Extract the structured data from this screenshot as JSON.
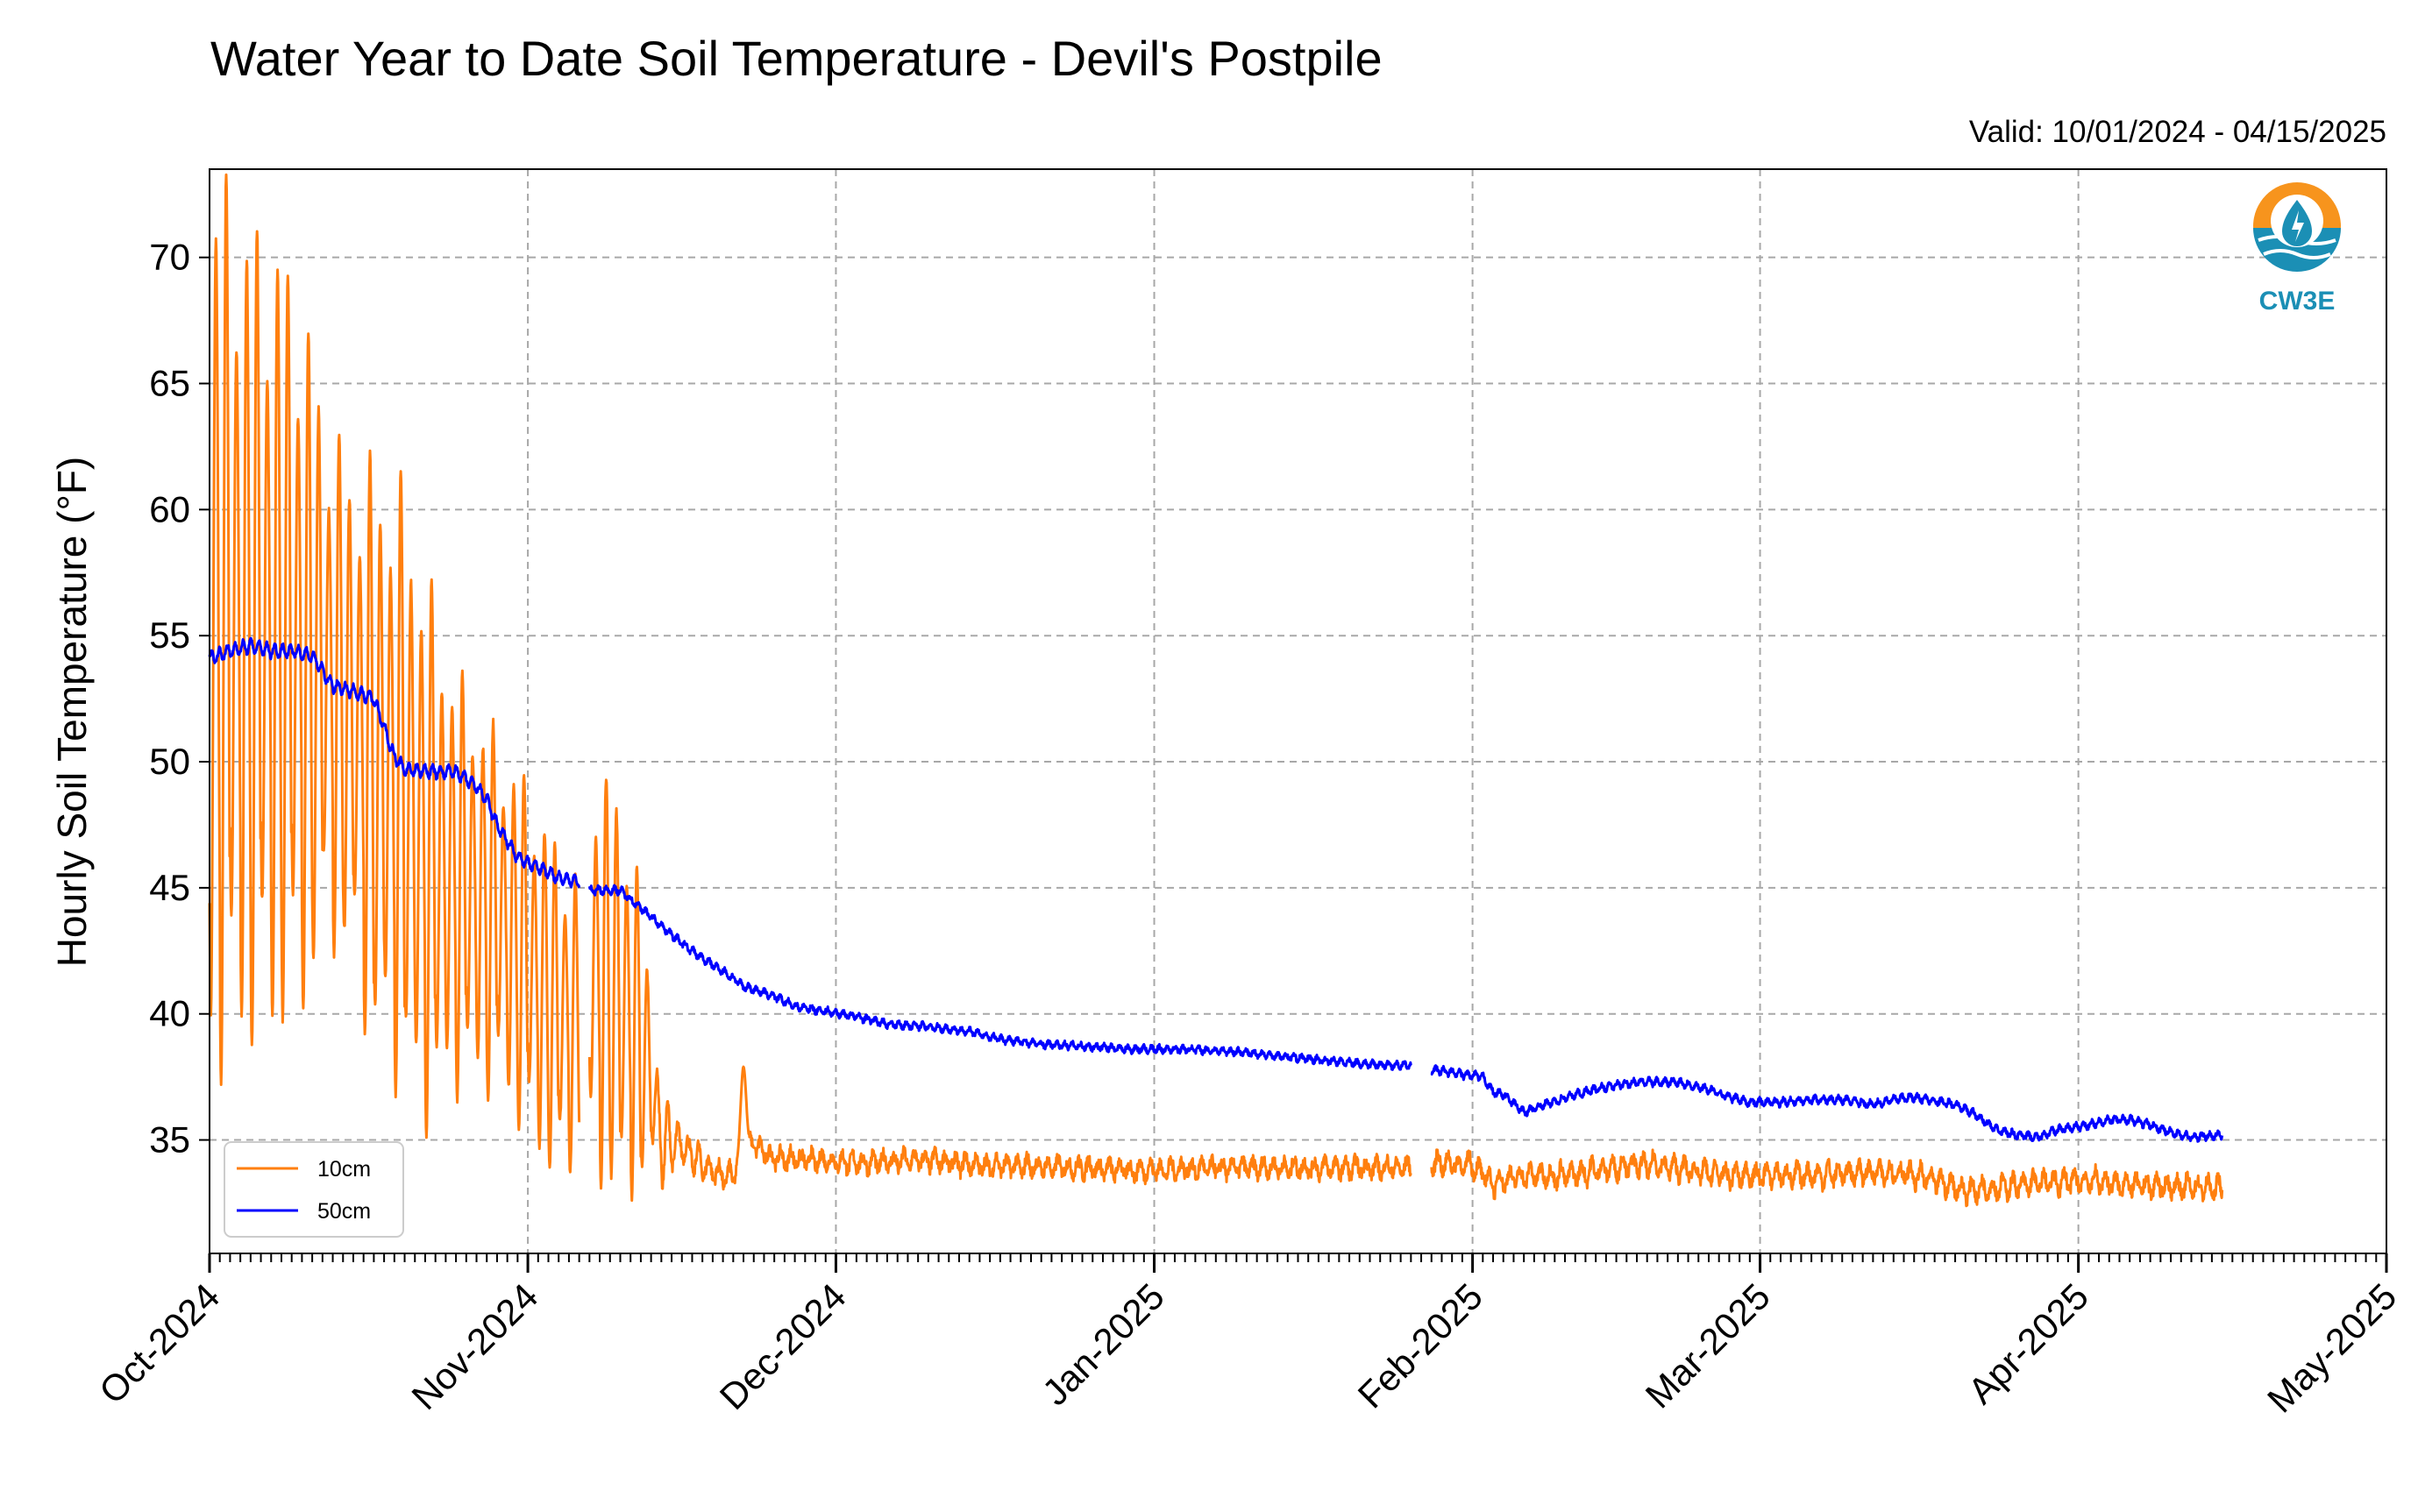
{
  "chart_data": {
    "type": "line",
    "title": "Water Year to Date Soil Temperature - Devil's Postpile",
    "subtitle": "Valid: 10/01/2024 - 04/15/2025",
    "ylabel": "Hourly Soil Temperature (°F)",
    "xlabel": "",
    "xlim": [
      "2024-10-01",
      "2025-05-01"
    ],
    "ylim": [
      30.5,
      73.5
    ],
    "yticks": [
      35,
      40,
      45,
      50,
      55,
      60,
      65,
      70
    ],
    "xticks": [
      {
        "date": "2024-10-01",
        "label": "Oct-2024"
      },
      {
        "date": "2024-11-01",
        "label": "Nov-2024"
      },
      {
        "date": "2024-12-01",
        "label": "Dec-2024"
      },
      {
        "date": "2025-01-01",
        "label": "Jan-2025"
      },
      {
        "date": "2025-02-01",
        "label": "Feb-2025"
      },
      {
        "date": "2025-03-01",
        "label": "Mar-2025"
      },
      {
        "date": "2025-04-01",
        "label": "Apr-2025"
      },
      {
        "date": "2025-05-01",
        "label": "May-2025"
      }
    ],
    "grid": true,
    "legend_position": "lower-left",
    "logo_text": "CW3E",
    "series": [
      {
        "name": "10cm",
        "color": "#ff7f0e",
        "segments": [
          {
            "start": "2024-10-01",
            "end": "2024-11-06",
            "base": [
              [
                0,
                55.5
              ],
              [
                4,
                55
              ],
              [
                8,
                54.5
              ],
              [
                12,
                53
              ],
              [
                16,
                50
              ],
              [
                19,
                49
              ],
              [
                20,
                47.5
              ],
              [
                22,
                46
              ],
              [
                25,
                45
              ],
              [
                28,
                44
              ],
              [
                31,
                42
              ],
              [
                34,
                40
              ],
              [
                36.5,
                39.5
              ]
            ],
            "amp": [
              [
                0,
                15.5
              ],
              [
                4,
                14
              ],
              [
                8,
                13
              ],
              [
                10,
                11
              ],
              [
                11,
                9
              ],
              [
                14,
                8.5
              ],
              [
                16,
                10
              ],
              [
                20,
                10
              ],
              [
                24,
                7
              ],
              [
                28,
                6
              ],
              [
                32,
                6
              ],
              [
                36.5,
                5
              ]
            ]
          },
          {
            "start": "2024-11-07",
            "end": "2025-01-26",
            "base": [
              [
                37,
                42
              ],
              [
                41,
                40
              ],
              [
                43,
                37.5
              ],
              [
                44,
                35
              ],
              [
                46,
                34.8
              ],
              [
                48,
                34
              ],
              [
                50,
                33.6
              ],
              [
                51,
                33.5
              ],
              [
                52,
                35
              ],
              [
                53,
                34.7
              ],
              [
                55,
                34.3
              ],
              [
                63,
                34.1
              ],
              [
                70,
                34.2
              ],
              [
                75,
                34
              ],
              [
                85,
                33.9
              ],
              [
                90,
                33.8
              ],
              [
                100,
                33.9
              ],
              [
                110,
                33.9
              ],
              [
                117,
                33.9
              ]
            ],
            "amp": [
              [
                37,
                7
              ],
              [
                40,
                7
              ],
              [
                42,
                5
              ],
              [
                43,
                3
              ],
              [
                44,
                1.5
              ],
              [
                46,
                0.6
              ],
              [
                50,
                0.4
              ],
              [
                55,
                0.3
              ],
              [
                117,
                0.3
              ]
            ],
            "spikes": [
              [
                52,
                37.9
              ]
            ]
          },
          {
            "start": "2025-01-28",
            "end": "2025-04-15",
            "base": [
              [
                119,
                34.1
              ],
              [
                123,
                34
              ],
              [
                125,
                33.3
              ],
              [
                128,
                33.6
              ],
              [
                132,
                33.6
              ],
              [
                135,
                33.8
              ],
              [
                138,
                34
              ],
              [
                141,
                34
              ],
              [
                144,
                33.8
              ],
              [
                148,
                33.6
              ],
              [
                152,
                33.6
              ],
              [
                156,
                33.6
              ],
              [
                160,
                33.7
              ],
              [
                165,
                33.7
              ],
              [
                168,
                33.4
              ],
              [
                171,
                33
              ],
              [
                174,
                33.1
              ],
              [
                178,
                33.3
              ],
              [
                183,
                33.4
              ],
              [
                187,
                33.2
              ],
              [
                196,
                33.1
              ]
            ],
            "amp": [
              [
                119,
                0.35
              ],
              [
                196,
                0.35
              ]
            ]
          }
        ]
      },
      {
        "name": "50cm",
        "color": "#0000ff",
        "segments": [
          {
            "start": "2024-10-01",
            "end": "2024-11-06",
            "base": [
              [
                0,
                54.1
              ],
              [
                2,
                54.4
              ],
              [
                4,
                54.6
              ],
              [
                6,
                54.4
              ],
              [
                8,
                54.4
              ],
              [
                10,
                54.2
              ],
              [
                11,
                53.6
              ],
              [
                12,
                53
              ],
              [
                14,
                52.8
              ],
              [
                16,
                52.5
              ],
              [
                18,
                50.2
              ],
              [
                19,
                49.7
              ],
              [
                22,
                49.6
              ],
              [
                24,
                49.6
              ],
              [
                26,
                49
              ],
              [
                27,
                48.5
              ],
              [
                28,
                47.5
              ],
              [
                30,
                46.2
              ],
              [
                32,
                45.8
              ],
              [
                34,
                45.4
              ],
              [
                36.5,
                45.2
              ]
            ],
            "amp": [
              [
                0,
                0.25
              ],
              [
                36.5,
                0.2
              ]
            ]
          },
          {
            "start": "2024-11-07",
            "end": "2025-01-26",
            "base": [
              [
                38,
                44.9
              ],
              [
                40,
                44.9
              ],
              [
                42,
                44.2
              ],
              [
                44,
                43.5
              ],
              [
                46,
                42.8
              ],
              [
                48,
                42.2
              ],
              [
                50,
                41.7
              ],
              [
                52,
                41.1
              ],
              [
                55,
                40.7
              ],
              [
                57,
                40.3
              ],
              [
                60,
                40.1
              ],
              [
                63,
                39.9
              ],
              [
                66,
                39.6
              ],
              [
                70,
                39.5
              ],
              [
                74,
                39.3
              ],
              [
                77,
                39
              ],
              [
                81,
                38.8
              ],
              [
                86,
                38.7
              ],
              [
                90,
                38.6
              ],
              [
                95,
                38.6
              ],
              [
                100,
                38.5
              ],
              [
                105,
                38.3
              ],
              [
                110,
                38.1
              ],
              [
                113,
                38
              ],
              [
                117,
                37.95
              ]
            ],
            "amp": [
              [
                38,
                0.12
              ],
              [
                117,
                0.1
              ]
            ]
          },
          {
            "start": "2025-01-28",
            "end": "2025-04-15",
            "base": [
              [
                119,
                37.8
              ],
              [
                122,
                37.6
              ],
              [
                124,
                37.5
              ],
              [
                125,
                36.9
              ],
              [
                126,
                36.8
              ],
              [
                128,
                36.1
              ],
              [
                130,
                36.4
              ],
              [
                133,
                36.8
              ],
              [
                136,
                37.1
              ],
              [
                139,
                37.3
              ],
              [
                143,
                37.3
              ],
              [
                146,
                37
              ],
              [
                148,
                36.7
              ],
              [
                150,
                36.5
              ],
              [
                153,
                36.5
              ],
              [
                156,
                36.6
              ],
              [
                159,
                36.6
              ],
              [
                162,
                36.4
              ],
              [
                164,
                36.6
              ],
              [
                166,
                36.7
              ],
              [
                170,
                36.4
              ],
              [
                172,
                36
              ],
              [
                174,
                35.4
              ],
              [
                176,
                35.2
              ],
              [
                178,
                35.1
              ],
              [
                180,
                35.4
              ],
              [
                183,
                35.6
              ],
              [
                185,
                35.8
              ],
              [
                187,
                35.8
              ],
              [
                189,
                35.6
              ],
              [
                191,
                35.3
              ],
              [
                193,
                35.1
              ],
              [
                196,
                35.2
              ]
            ],
            "amp": [
              [
                119,
                0.12
              ],
              [
                196,
                0.12
              ]
            ]
          }
        ]
      }
    ]
  }
}
